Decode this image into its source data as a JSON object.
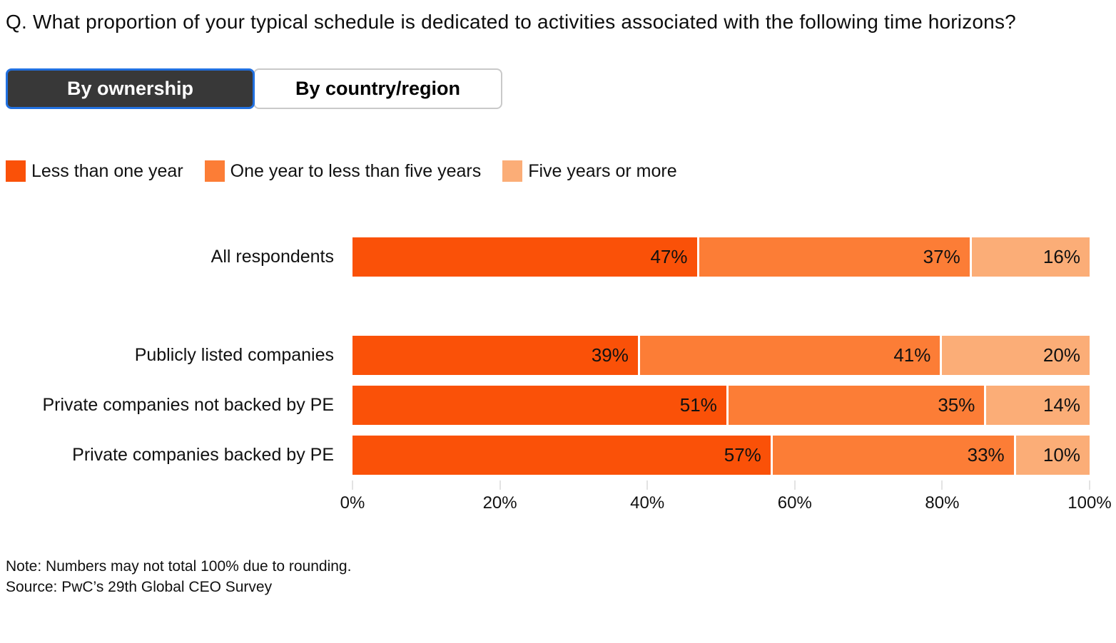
{
  "title": "Q. What proportion of your typical schedule is dedicated to activities associated with the following time horizons?",
  "tabs": [
    {
      "label": "By ownership",
      "active": true
    },
    {
      "label": "By country/region",
      "active": false
    }
  ],
  "legend": [
    {
      "label": "Less than one year",
      "color": "#fa5108"
    },
    {
      "label": "One year to less than five years",
      "color": "#fc7d36"
    },
    {
      "label": "Five years or more",
      "color": "#fbad77"
    }
  ],
  "chart_data": {
    "type": "bar",
    "orientation": "horizontal-stacked",
    "title": "",
    "xlabel": "",
    "ylabel": "",
    "xlim": [
      0,
      100
    ],
    "grid": false,
    "legend_position": "top",
    "series": [
      {
        "name": "Less than one year",
        "color": "#fa5108",
        "values": [
          47,
          39,
          51,
          57
        ]
      },
      {
        "name": "One year to less than five years",
        "color": "#fc7d36",
        "values": [
          37,
          41,
          35,
          33
        ]
      },
      {
        "name": "Five years or more",
        "color": "#fbad77",
        "values": [
          16,
          20,
          14,
          10
        ]
      }
    ],
    "categories": [
      "All respondents",
      "Publicly listed companies",
      "Private companies not backed by PE",
      "Private companies backed by PE"
    ],
    "rows": [
      {
        "category": "All respondents",
        "segments": [
          {
            "value": 47,
            "label": "47%",
            "color": "#fa5108"
          },
          {
            "value": 37,
            "label": "37%",
            "color": "#fc7d36"
          },
          {
            "value": 16,
            "label": "16%",
            "color": "#fbad77"
          }
        ]
      },
      {
        "category": "Publicly listed companies",
        "segments": [
          {
            "value": 39,
            "label": "39%",
            "color": "#fa5108"
          },
          {
            "value": 41,
            "label": "41%",
            "color": "#fc7d36"
          },
          {
            "value": 20,
            "label": "20%",
            "color": "#fbad77"
          }
        ]
      },
      {
        "category": "Private companies not backed by PE",
        "segments": [
          {
            "value": 51,
            "label": "51%",
            "color": "#fa5108"
          },
          {
            "value": 35,
            "label": "35%",
            "color": "#fc7d36"
          },
          {
            "value": 14,
            "label": "14%",
            "color": "#fbad77"
          }
        ]
      },
      {
        "category": "Private companies backed by PE",
        "segments": [
          {
            "value": 57,
            "label": "57%",
            "color": "#fa5108"
          },
          {
            "value": 33,
            "label": "33%",
            "color": "#fc7d36"
          },
          {
            "value": 10,
            "label": "10%",
            "color": "#fbad77"
          }
        ]
      }
    ],
    "x_ticks": [
      {
        "label": "0%",
        "pos": 0
      },
      {
        "label": "20%",
        "pos": 20
      },
      {
        "label": "40%",
        "pos": 40
      },
      {
        "label": "60%",
        "pos": 60
      },
      {
        "label": "80%",
        "pos": 80
      },
      {
        "label": "100%",
        "pos": 100
      }
    ]
  },
  "notes": {
    "note": "Note: Numbers may not total 100% due to rounding.",
    "source": "Source: PwC’s 29th Global CEO Survey"
  }
}
